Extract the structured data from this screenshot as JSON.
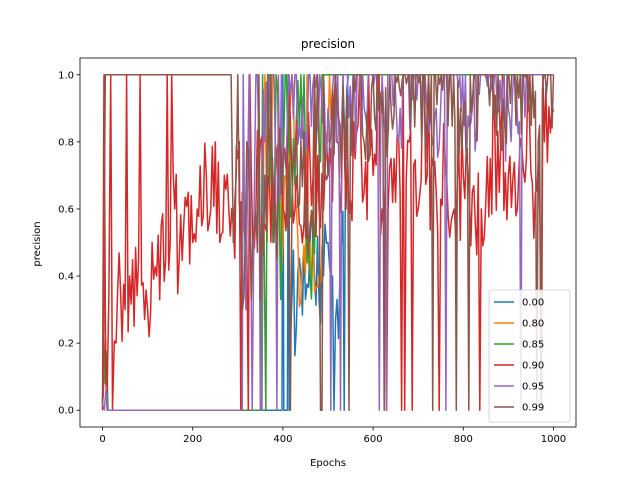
{
  "chart_data": {
    "type": "line",
    "title": "precision",
    "xlabel": "Epochs",
    "ylabel": "precision",
    "xlim": [
      -50,
      1050
    ],
    "ylim": [
      -0.05,
      1.05
    ],
    "xticks": [
      0,
      200,
      400,
      600,
      800,
      1000
    ],
    "xtick_labels": [
      "0",
      "200",
      "400",
      "600",
      "800",
      "1000"
    ],
    "yticks": [
      0.0,
      0.2,
      0.4,
      0.6,
      0.8,
      1.0
    ],
    "ytick_labels": [
      "0.0",
      "0.2",
      "0.4",
      "0.6",
      "0.8",
      "1.0"
    ],
    "legend_position": "lower-right",
    "epochs": 1000,
    "series": [
      {
        "name": "0.00",
        "color": "#1f77b4",
        "points": [
          [
            0,
            0.02
          ],
          [
            5,
            0.17
          ],
          [
            10,
            0
          ],
          [
            300,
            0
          ],
          [
            398,
            0
          ],
          [
            400,
            1.0
          ],
          [
            402,
            0
          ],
          [
            410,
            0
          ],
          [
            412,
            1.0
          ],
          [
            414,
            0
          ],
          [
            420,
            0.33
          ],
          [
            430,
            0.25
          ],
          [
            440,
            0.4
          ],
          [
            450,
            0.33
          ],
          [
            460,
            0.5
          ],
          [
            470,
            0.4
          ],
          [
            480,
            0.33
          ],
          [
            490,
            0.4
          ],
          [
            500,
            0.5
          ],
          [
            510,
            0.4
          ],
          [
            520,
            0.33
          ],
          [
            530,
            0.5
          ],
          [
            545,
            1.0
          ],
          [
            1000,
            1.0
          ]
        ]
      },
      {
        "name": "0.80",
        "color": "#ff7f0e",
        "points": [
          [
            0,
            0.03
          ],
          [
            4,
            0.1
          ],
          [
            10,
            0
          ],
          [
            320,
            0
          ],
          [
            350,
            0
          ],
          [
            360,
            1.0
          ],
          [
            365,
            0.5
          ],
          [
            380,
            1.0
          ],
          [
            400,
            0.5
          ],
          [
            420,
            1.0
          ],
          [
            440,
            0.33
          ],
          [
            460,
            0.5
          ],
          [
            480,
            0.4
          ],
          [
            500,
            0.8
          ],
          [
            520,
            1.0
          ],
          [
            1000,
            1.0
          ]
        ]
      },
      {
        "name": "0.85",
        "color": "#2ca02c",
        "points": [
          [
            0,
            0.02
          ],
          [
            6,
            0.08
          ],
          [
            12,
            0
          ],
          [
            340,
            0
          ],
          [
            350,
            0
          ],
          [
            355,
            1.0
          ],
          [
            362,
            0
          ],
          [
            370,
            1.0
          ],
          [
            378,
            0.5
          ],
          [
            385,
            1.0
          ],
          [
            395,
            0.33
          ],
          [
            405,
            1.0
          ],
          [
            420,
            0.6
          ],
          [
            440,
            1.0
          ],
          [
            460,
            0.4
          ],
          [
            480,
            0.8
          ],
          [
            500,
            1.0
          ],
          [
            560,
            1.0
          ],
          [
            1000,
            1.0
          ]
        ]
      },
      {
        "name": "0.90",
        "color": "#d62728",
        "points": [
          [
            0,
            0
          ],
          [
            10,
            0.05
          ],
          [
            18,
            1.0
          ],
          [
            22,
            0
          ],
          [
            30,
            0.2
          ],
          [
            40,
            0.35
          ],
          [
            50,
            0.3
          ],
          [
            60,
            0.4
          ],
          [
            70,
            0.25
          ],
          [
            80,
            0.45
          ],
          [
            90,
            0.38
          ],
          [
            100,
            0.3
          ],
          [
            110,
            0.5
          ],
          [
            120,
            0.4
          ],
          [
            130,
            0.55
          ],
          [
            140,
            0.45
          ],
          [
            150,
            0.5
          ],
          [
            160,
            0.6
          ],
          [
            170,
            0.45
          ],
          [
            180,
            0.55
          ],
          [
            190,
            0.65
          ],
          [
            200,
            0.5
          ],
          [
            210,
            0.6
          ],
          [
            220,
            0.55
          ],
          [
            230,
            0.7
          ],
          [
            240,
            0.6
          ],
          [
            250,
            0.8
          ],
          [
            260,
            0.5
          ],
          [
            270,
            0.7
          ],
          [
            280,
            0.6
          ],
          [
            290,
            0.55
          ],
          [
            300,
            0.75
          ],
          [
            310,
            0.65
          ],
          [
            320,
            0.5
          ],
          [
            330,
            0.7
          ],
          [
            340,
            0.6
          ],
          [
            350,
            0.8
          ],
          [
            360,
            0.55
          ],
          [
            370,
            0.7
          ],
          [
            380,
            0.6
          ],
          [
            390,
            0.8
          ],
          [
            400,
            0.6
          ],
          [
            420,
            0.7
          ],
          [
            440,
            0.55
          ],
          [
            460,
            0.75
          ],
          [
            480,
            0.6
          ],
          [
            500,
            0.7
          ],
          [
            520,
            0.8
          ],
          [
            540,
            0.6
          ],
          [
            560,
            0.75
          ],
          [
            580,
            0.65
          ],
          [
            600,
            0.7
          ],
          [
            620,
            0.6
          ],
          [
            640,
            0.75
          ],
          [
            660,
            0.65
          ],
          [
            680,
            0.8
          ],
          [
            700,
            0.6
          ],
          [
            720,
            0.7
          ],
          [
            740,
            0.65
          ],
          [
            760,
            0.75
          ],
          [
            780,
            0.6
          ],
          [
            800,
            0.7
          ],
          [
            820,
            0.65
          ],
          [
            840,
            0.6
          ],
          [
            860,
            0.75
          ],
          [
            880,
            0.65
          ],
          [
            900,
            0.7
          ],
          [
            920,
            0.6
          ],
          [
            940,
            0.75
          ],
          [
            960,
            0.65
          ],
          [
            980,
            0.8
          ],
          [
            1000,
            0.89
          ]
        ]
      },
      {
        "name": "0.95",
        "color": "#9467bd",
        "points": [
          [
            0,
            0.02
          ],
          [
            8,
            0.07
          ],
          [
            14,
            0
          ],
          [
            300,
            0
          ],
          [
            310,
            0
          ],
          [
            312,
            1.0
          ],
          [
            318,
            0.3
          ],
          [
            325,
            1.0
          ],
          [
            332,
            0
          ],
          [
            340,
            1.0
          ],
          [
            360,
            0.8
          ],
          [
            380,
            1.0
          ],
          [
            400,
            0.7
          ],
          [
            420,
            1.0
          ],
          [
            440,
            0.8
          ],
          [
            460,
            1.0
          ],
          [
            500,
            0.9
          ],
          [
            540,
            1.0
          ],
          [
            580,
            0.9
          ],
          [
            620,
            1.0
          ],
          [
            660,
            0.9
          ],
          [
            700,
            1.0
          ],
          [
            740,
            0.9
          ],
          [
            780,
            1.0
          ],
          [
            820,
            0.9
          ],
          [
            860,
            1.0
          ],
          [
            900,
            0.9
          ],
          [
            940,
            1.0
          ],
          [
            1000,
            1.0
          ]
        ]
      },
      {
        "name": "0.99",
        "color": "#8c564b",
        "points": [
          [
            0,
            0.02
          ],
          [
            2,
            0.05
          ],
          [
            4,
            0.6
          ],
          [
            6,
            1.0
          ],
          [
            285,
            1.0
          ],
          [
            290,
            0.5
          ],
          [
            300,
            1.0
          ],
          [
            310,
            0.3
          ],
          [
            320,
            0.8
          ],
          [
            330,
            0.33
          ],
          [
            340,
            0.6
          ],
          [
            350,
            0.33
          ],
          [
            360,
            0.7
          ],
          [
            380,
            0.5
          ],
          [
            400,
            0.75
          ],
          [
            420,
            0.6
          ],
          [
            440,
            0.8
          ],
          [
            460,
            0.55
          ],
          [
            480,
            0.85
          ],
          [
            500,
            0.7
          ],
          [
            520,
            0.9
          ],
          [
            540,
            0.75
          ],
          [
            560,
            0.95
          ],
          [
            580,
            0.8
          ],
          [
            600,
            1.0
          ],
          [
            640,
            0.9
          ],
          [
            680,
            1.0
          ],
          [
            720,
            0.9
          ],
          [
            760,
            1.0
          ],
          [
            800,
            0.9
          ],
          [
            840,
            1.0
          ],
          [
            880,
            0.9
          ],
          [
            920,
            1.0
          ],
          [
            960,
            0.95
          ],
          [
            1000,
            1.0
          ]
        ]
      }
    ]
  }
}
